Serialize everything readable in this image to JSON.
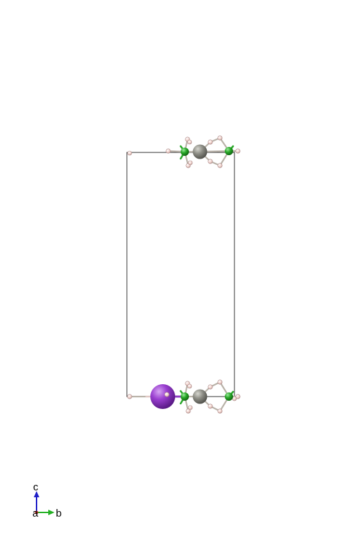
{
  "axes": {
    "c_label": "c",
    "a_label": "a",
    "b_label": "b",
    "colors": {
      "a": "#c0392b",
      "b": "#22b022",
      "c": "#1f1fc8"
    }
  },
  "colors": {
    "cell_edge": "#333333",
    "alkali": "#8e3ac2",
    "metal": "#8a8a80",
    "boron": "#22a022",
    "hydrogen": "#f2d2cc"
  }
}
